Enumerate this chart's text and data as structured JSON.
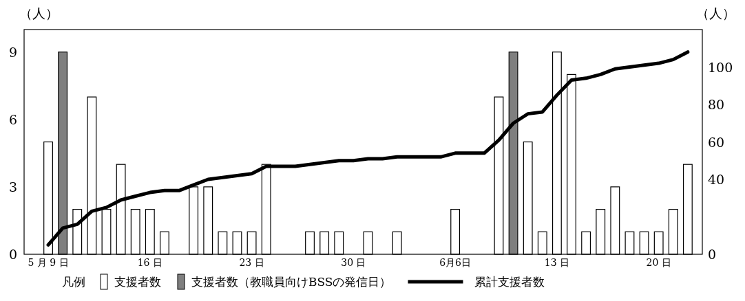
{
  "chart_data": {
    "type": "bar",
    "ylabel": "（人）",
    "y2label": "（人）",
    "legend_title": "凡例",
    "legend": "bottom",
    "grid": false,
    "categories": [
      "5 月 9 日",
      null,
      null,
      null,
      null,
      null,
      null,
      "16 日",
      null,
      null,
      null,
      null,
      null,
      null,
      "23 日",
      null,
      null,
      null,
      null,
      null,
      null,
      "30 日",
      null,
      null,
      null,
      null,
      null,
      null,
      "6月6日",
      null,
      null,
      null,
      null,
      null,
      null,
      "13 日",
      null,
      null,
      null,
      null,
      null,
      null,
      "20 日",
      null,
      null
    ],
    "ylim": [
      0,
      10
    ],
    "yticks": [
      0,
      3,
      6,
      9
    ],
    "y2lim": [
      0,
      120
    ],
    "y2ticks": [
      0,
      40,
      60,
      80,
      100
    ],
    "series": [
      {
        "name": "支援者数",
        "color": "#ffffff",
        "values": [
          5,
          null,
          2,
          7,
          2,
          4,
          2,
          2,
          1,
          0,
          3,
          3,
          1,
          1,
          1,
          4,
          0,
          0,
          1,
          1,
          1,
          0,
          1,
          0,
          1,
          0,
          0,
          0,
          2,
          0,
          0,
          7,
          null,
          5,
          1,
          9,
          8,
          1,
          2,
          3,
          1,
          1,
          1,
          2,
          4
        ]
      },
      {
        "name": "支援者数（教職員向けBSSの発信日）",
        "color": "#7f7f7f",
        "values": [
          null,
          9,
          null,
          null,
          null,
          null,
          null,
          null,
          null,
          null,
          null,
          null,
          null,
          null,
          null,
          null,
          null,
          null,
          null,
          null,
          null,
          null,
          null,
          null,
          null,
          null,
          null,
          null,
          null,
          null,
          null,
          null,
          9,
          null,
          null,
          null,
          null,
          null,
          null,
          null,
          null,
          null,
          null,
          null,
          null
        ]
      },
      {
        "name": "累計支援者数",
        "type": "line",
        "axis": "y2",
        "color": "#000000",
        "values": [
          5,
          14,
          16,
          23,
          25,
          29,
          31,
          33,
          34,
          34,
          37,
          40,
          41,
          42,
          43,
          47,
          47,
          47,
          48,
          49,
          50,
          50,
          51,
          51,
          52,
          52,
          52,
          52,
          54,
          54,
          54,
          61,
          70,
          75,
          76,
          85,
          93,
          94,
          96,
          99,
          100,
          101,
          102,
          104,
          108
        ]
      }
    ]
  }
}
